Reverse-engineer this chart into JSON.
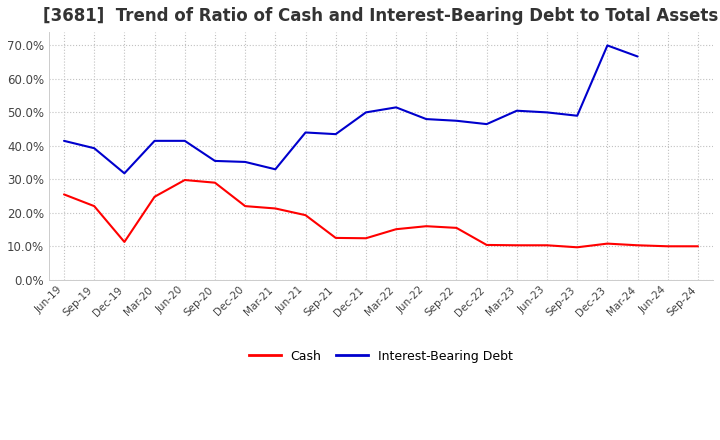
{
  "title": "[3681]  Trend of Ratio of Cash and Interest-Bearing Debt to Total Assets",
  "x_labels": [
    "Jun-19",
    "Sep-19",
    "Dec-19",
    "Mar-20",
    "Jun-20",
    "Sep-20",
    "Dec-20",
    "Mar-21",
    "Jun-21",
    "Sep-21",
    "Dec-21",
    "Mar-22",
    "Jun-22",
    "Sep-22",
    "Dec-22",
    "Mar-23",
    "Jun-23",
    "Sep-23",
    "Dec-23",
    "Mar-24",
    "Jun-24",
    "Sep-24"
  ],
  "cash": [
    0.255,
    0.22,
    0.113,
    0.248,
    0.298,
    0.29,
    0.22,
    0.213,
    0.193,
    0.125,
    0.124,
    0.151,
    0.16,
    0.155,
    0.104,
    0.103,
    0.103,
    0.097,
    0.108,
    0.103,
    0.1,
    0.1
  ],
  "interest_bearing_debt": [
    0.415,
    0.393,
    0.318,
    0.415,
    0.415,
    0.355,
    0.352,
    0.33,
    0.44,
    0.435,
    0.5,
    0.515,
    0.48,
    0.475,
    0.465,
    0.505,
    0.5,
    0.49,
    0.7,
    0.667,
    null,
    null
  ],
  "cash_color": "#ff0000",
  "ibd_color": "#0000cd",
  "ylim": [
    0.0,
    0.74
  ],
  "yticks": [
    0.0,
    0.1,
    0.2,
    0.3,
    0.4,
    0.5,
    0.6,
    0.7
  ],
  "background_color": "#ffffff",
  "plot_bg_color": "#ffffff",
  "grid_color": "#bbbbbb",
  "title_fontsize": 12,
  "legend_labels": [
    "Cash",
    "Interest-Bearing Debt"
  ]
}
